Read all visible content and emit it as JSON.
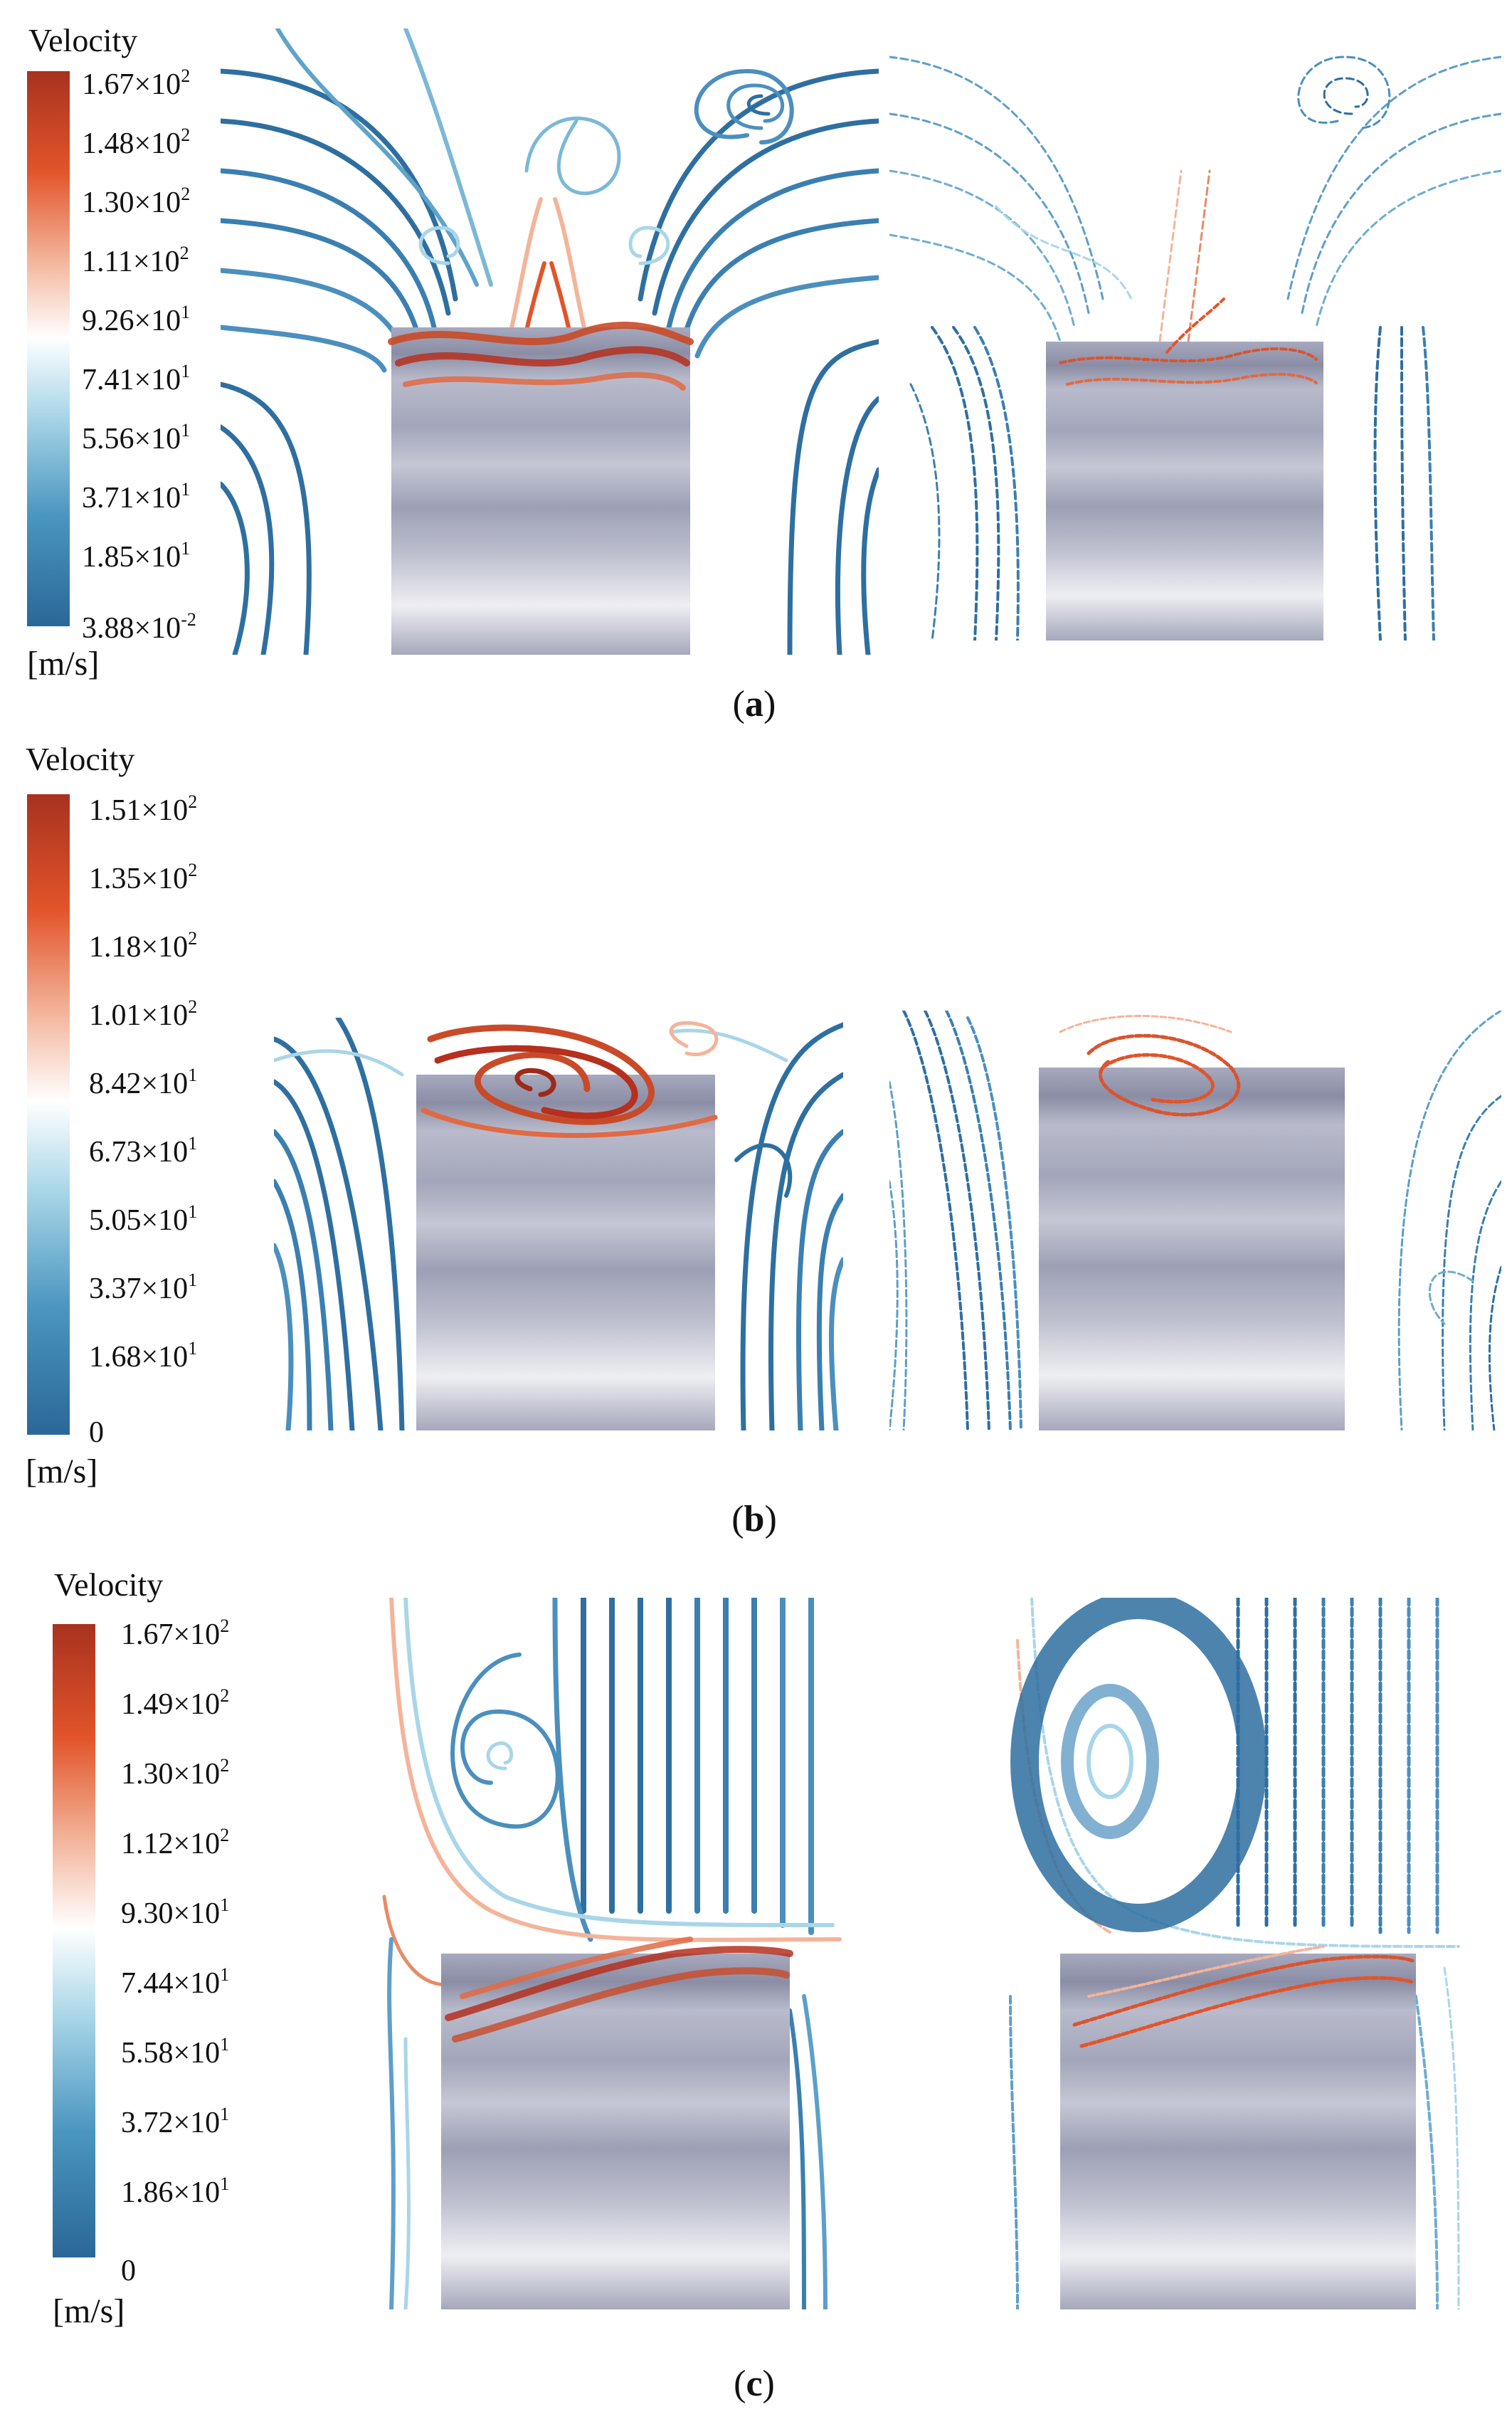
{
  "panels": [
    {
      "id": "a",
      "caption": "a",
      "legend": {
        "title": "Velocity",
        "ticks": [
          {
            "m": "1.67×10",
            "e": "2"
          },
          {
            "m": "1.48×10",
            "e": "2"
          },
          {
            "m": "1.30×10",
            "e": "2"
          },
          {
            "m": "1.11×10",
            "e": "2"
          },
          {
            "m": "9.26×10",
            "e": "1"
          },
          {
            "m": "7.41×10",
            "e": "1"
          },
          {
            "m": "5.56×10",
            "e": "1"
          },
          {
            "m": "3.71×10",
            "e": "1"
          },
          {
            "m": "1.85×10",
            "e": "1"
          },
          {
            "m": "3.88×10",
            "e": "-2"
          }
        ],
        "unit": "[m/s]"
      }
    },
    {
      "id": "b",
      "caption": "b",
      "legend": {
        "title": "Velocity",
        "ticks": [
          {
            "m": "1.51×10",
            "e": "2"
          },
          {
            "m": "1.35×10",
            "e": "2"
          },
          {
            "m": "1.18×10",
            "e": "2"
          },
          {
            "m": "1.01×10",
            "e": "2"
          },
          {
            "m": "8.42×10",
            "e": "1"
          },
          {
            "m": "6.73×10",
            "e": "1"
          },
          {
            "m": "5.05×10",
            "e": "1"
          },
          {
            "m": "3.37×10",
            "e": "1"
          },
          {
            "m": "1.68×10",
            "e": "1"
          },
          {
            "m": "0",
            "e": ""
          }
        ],
        "unit": "[m/s]"
      }
    },
    {
      "id": "c",
      "caption": "c",
      "legend": {
        "title": "Velocity",
        "ticks": [
          {
            "m": "1.67×10",
            "e": "2"
          },
          {
            "m": "1.49×10",
            "e": "2"
          },
          {
            "m": "1.30×10",
            "e": "2"
          },
          {
            "m": "1.12×10",
            "e": "2"
          },
          {
            "m": "9.30×10",
            "e": "1"
          },
          {
            "m": "7.44×10",
            "e": "1"
          },
          {
            "m": "5.58×10",
            "e": "1"
          },
          {
            "m": "3.72×10",
            "e": "1"
          },
          {
            "m": "1.86×10",
            "e": "1"
          },
          {
            "m": "0",
            "e": ""
          }
        ],
        "unit": "[m/s]"
      }
    }
  ],
  "colors": {
    "low": "#2e6fa0",
    "mid": "#ffffff",
    "high": "#b5301e",
    "obstacle": "#9a9cb3"
  }
}
